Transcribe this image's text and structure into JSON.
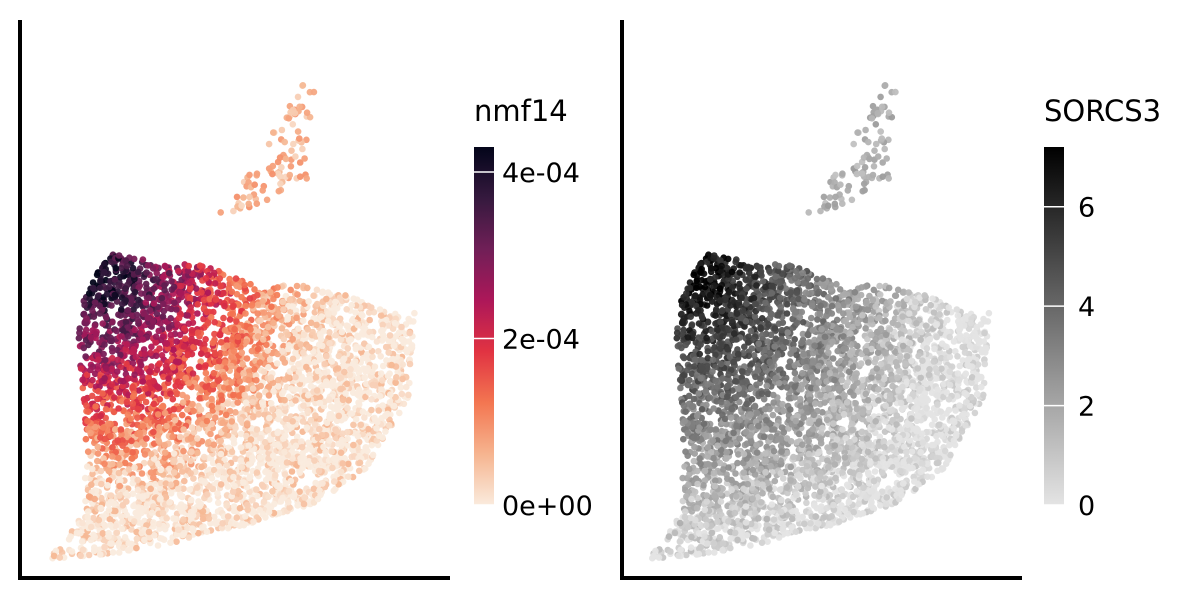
{
  "chart_data": [
    {
      "type": "scatter",
      "panel": "left",
      "title": "",
      "xlabel": "",
      "ylabel": "",
      "grid": false,
      "color_scale": {
        "title": "nmf14",
        "colormap": "rocket",
        "min": 0,
        "max": 0.00043,
        "ticks": [
          0,
          0.0002,
          0.0004
        ],
        "tick_labels": [
          "0e+00",
          "2e-04",
          "4e-04"
        ],
        "colors": [
          "#faebdd",
          "#f6b48f",
          "#f37651",
          "#e13342",
          "#ad1759",
          "#701f57",
          "#35193e",
          "#03051a"
        ]
      },
      "shape": {
        "main": [
          [
            -0.97,
            -0.94
          ],
          [
            -0.86,
            -0.87
          ],
          [
            -0.78,
            -0.72
          ],
          [
            -0.77,
            -0.46
          ],
          [
            -0.81,
            -0.12
          ],
          [
            -0.78,
            0.04
          ],
          [
            -0.66,
            0.2
          ],
          [
            -0.57,
            0.2
          ],
          [
            -0.42,
            0.16
          ],
          [
            -0.19,
            0.16
          ],
          [
            0.05,
            0.08
          ],
          [
            0.28,
            0.08
          ],
          [
            0.52,
            0.04
          ],
          [
            0.82,
            -0.05
          ],
          [
            0.85,
            0.15
          ],
          [
            0.8,
            -0.35
          ],
          [
            0.58,
            -0.62
          ],
          [
            0.32,
            -0.74
          ],
          [
            -0.02,
            -0.82
          ],
          [
            -0.4,
            -0.89
          ],
          [
            -0.72,
            -0.93
          ]
        ],
        "island": [
          [
            -0.12,
            0.35
          ],
          [
            0.04,
            0.52
          ],
          [
            0.24,
            0.78
          ],
          [
            0.36,
            0.92
          ],
          [
            0.34,
            0.77
          ],
          [
            0.3,
            0.6
          ],
          [
            0.32,
            0.46
          ],
          [
            0.26,
            0.44
          ],
          [
            0.12,
            0.4
          ],
          [
            -0.02,
            0.35
          ]
        ],
        "gap": [
          [
            -0.22,
            0.17
          ],
          [
            -0.02,
            0.1
          ],
          [
            0.04,
            0.14
          ],
          [
            -0.08,
            0.18
          ],
          [
            -0.16,
            0.19
          ]
        ]
      },
      "value_field": {
        "peak": [
          -0.7,
          0.12
        ],
        "spread": 1.05,
        "island_level": 0.05,
        "bridge_level": 0.42
      },
      "n_points": 4200
    },
    {
      "type": "scatter",
      "panel": "right",
      "title": "",
      "xlabel": "",
      "ylabel": "",
      "grid": false,
      "color_scale": {
        "title": "SORCS3",
        "colormap": "greys",
        "min": 0,
        "max": 7.2,
        "ticks": [
          0,
          2,
          4,
          6
        ],
        "tick_labels": [
          "0",
          "2",
          "4",
          "6"
        ],
        "colors": [
          "#e4e4e4",
          "#9a9a9a",
          "#4e4e4e",
          "#000000"
        ]
      },
      "shape": {
        "main": [
          [
            -0.97,
            -0.94
          ],
          [
            -0.86,
            -0.87
          ],
          [
            -0.78,
            -0.72
          ],
          [
            -0.77,
            -0.46
          ],
          [
            -0.81,
            -0.12
          ],
          [
            -0.78,
            0.04
          ],
          [
            -0.66,
            0.2
          ],
          [
            -0.57,
            0.2
          ],
          [
            -0.42,
            0.16
          ],
          [
            -0.19,
            0.16
          ],
          [
            0.05,
            0.08
          ],
          [
            0.28,
            0.08
          ],
          [
            0.52,
            0.04
          ],
          [
            0.82,
            -0.05
          ],
          [
            0.85,
            0.15
          ],
          [
            0.8,
            -0.35
          ],
          [
            0.58,
            -0.62
          ],
          [
            0.32,
            -0.74
          ],
          [
            -0.02,
            -0.82
          ],
          [
            -0.4,
            -0.89
          ],
          [
            -0.72,
            -0.93
          ]
        ],
        "island": [
          [
            -0.12,
            0.35
          ],
          [
            0.04,
            0.52
          ],
          [
            0.24,
            0.78
          ],
          [
            0.36,
            0.92
          ],
          [
            0.34,
            0.77
          ],
          [
            0.3,
            0.6
          ],
          [
            0.32,
            0.46
          ],
          [
            0.26,
            0.44
          ],
          [
            0.12,
            0.4
          ],
          [
            -0.02,
            0.35
          ]
        ],
        "gap": [
          [
            -0.22,
            0.17
          ],
          [
            -0.02,
            0.1
          ],
          [
            0.04,
            0.14
          ],
          [
            -0.08,
            0.18
          ],
          [
            -0.16,
            0.19
          ]
        ]
      },
      "value_field": {
        "peak": [
          -0.7,
          0.12
        ],
        "spread": 1.3,
        "island_level": 0.15,
        "bridge_level": 0.55
      },
      "n_points": 4200
    }
  ]
}
